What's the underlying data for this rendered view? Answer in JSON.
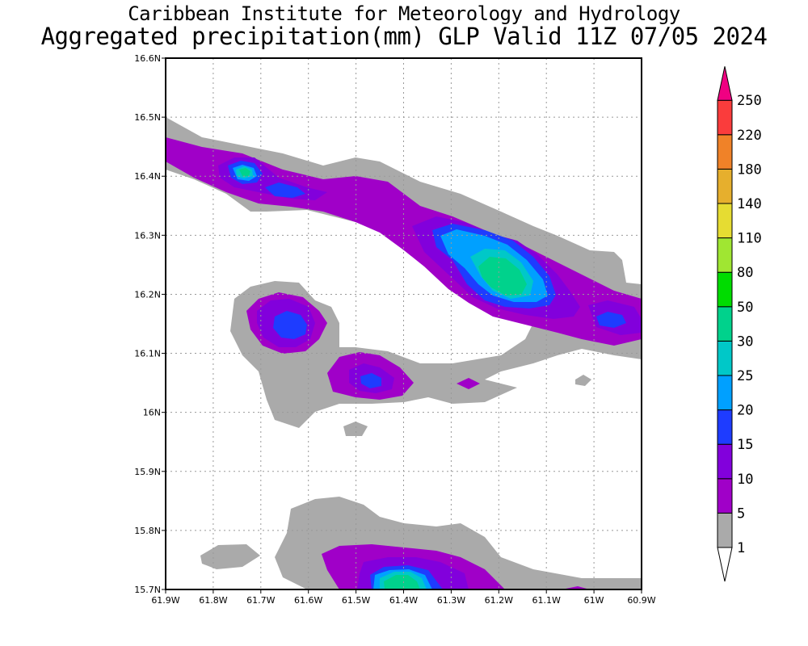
{
  "header": {
    "line1": "Caribbean Institute for Meteorology and Hydrology",
    "line2": "Aggregated precipitation(mm) GLP Valid 11Z 07/05 2024"
  },
  "map": {
    "lon_range": [
      -61.9,
      -60.9
    ],
    "lat_range": [
      15.7,
      16.6
    ],
    "x_ticks": [
      "61.9W",
      "61.8W",
      "61.7W",
      "61.6W",
      "61.5W",
      "61.4W",
      "61.3W",
      "61.2W",
      "61.1W",
      "61W",
      "60.9W"
    ],
    "y_ticks": [
      "15.7N",
      "15.8N",
      "15.9N",
      "16N",
      "16.1N",
      "16.2N",
      "16.3N",
      "16.4N",
      "16.5N",
      "16.6N"
    ],
    "grid": true
  },
  "colorbar": {
    "levels": [
      "1",
      "5",
      "10",
      "15",
      "20",
      "25",
      "30",
      "50",
      "80",
      "110",
      "140",
      "180",
      "220",
      "250"
    ],
    "colors": [
      "#aaaaaa",
      "#a000c8",
      "#8200dc",
      "#1e3cff",
      "#00a0ff",
      "#00c8c8",
      "#00d28c",
      "#00dc00",
      "#a0e632",
      "#e6dc32",
      "#e6af2d",
      "#f08228",
      "#fa3c3c",
      "#f00082"
    ]
  }
}
